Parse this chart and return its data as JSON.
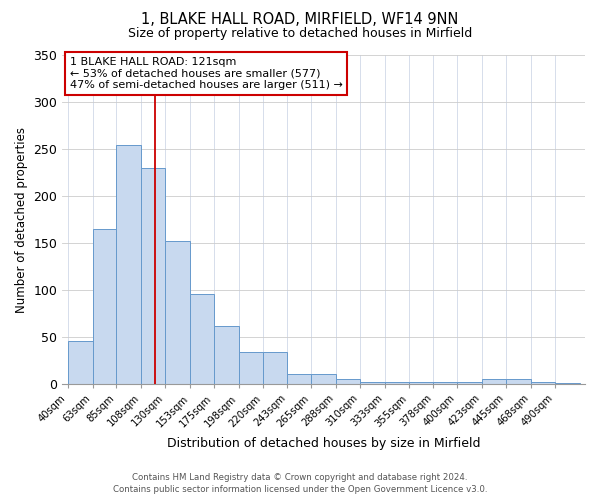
{
  "title": "1, BLAKE HALL ROAD, MIRFIELD, WF14 9NN",
  "subtitle": "Size of property relative to detached houses in Mirfield",
  "xlabel": "Distribution of detached houses by size in Mirfield",
  "ylabel": "Number of detached properties",
  "footer_lines": [
    "Contains HM Land Registry data © Crown copyright and database right 2024.",
    "Contains public sector information licensed under the Open Government Licence v3.0."
  ],
  "bar_labels": [
    "40sqm",
    "63sqm",
    "85sqm",
    "108sqm",
    "130sqm",
    "153sqm",
    "175sqm",
    "198sqm",
    "220sqm",
    "243sqm",
    "265sqm",
    "288sqm",
    "310sqm",
    "333sqm",
    "355sqm",
    "378sqm",
    "400sqm",
    "423sqm",
    "445sqm",
    "468sqm",
    "490sqm"
  ],
  "bar_values": [
    46,
    165,
    254,
    230,
    152,
    96,
    62,
    34,
    34,
    11,
    11,
    5,
    2,
    2,
    2,
    2,
    2,
    5,
    5,
    2,
    1
  ],
  "bar_color": "#c8d9ef",
  "bar_edge_color": "#6699cc",
  "ylim": [
    0,
    350
  ],
  "yticks": [
    0,
    50,
    100,
    150,
    200,
    250,
    300,
    350
  ],
  "property_sqm": 121,
  "property_line_color": "#cc0000",
  "annotation_title": "1 BLAKE HALL ROAD: 121sqm",
  "annotation_line1": "← 53% of detached houses are smaller (577)",
  "annotation_line2": "47% of semi-detached houses are larger (511) →",
  "annotation_box_color": "#cc0000",
  "bin_edges": [
    40,
    63,
    85,
    108,
    130,
    153,
    175,
    198,
    220,
    243,
    265,
    288,
    310,
    333,
    355,
    378,
    400,
    423,
    445,
    468,
    490,
    513
  ],
  "background_color": "#ffffff",
  "grid_color": "#cccccc",
  "grid_color_x": "#d0d8e8"
}
